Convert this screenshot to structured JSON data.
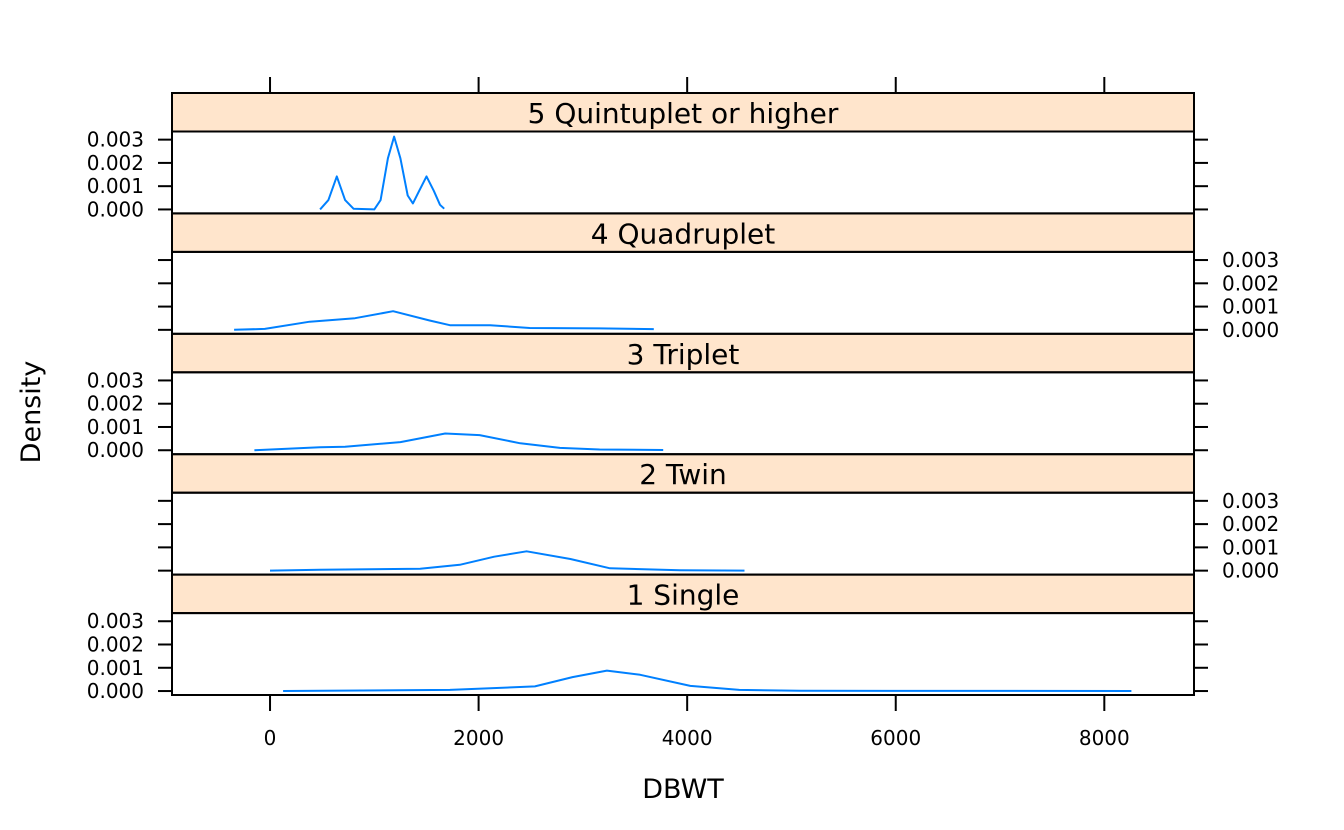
{
  "chart_data": {
    "type": "line",
    "plot_kind": "lattice density plot",
    "xlabel": "DBWT",
    "ylabel": "Density",
    "xlim": [
      -940,
      8860
    ],
    "ylim": [
      -0.00017,
      0.00335
    ],
    "x_ticks": [
      "0",
      "2000",
      "4000",
      "6000",
      "8000"
    ],
    "x_tick_values": [
      0,
      2000,
      4000,
      6000,
      8000
    ],
    "y_ticks": [
      "0.000",
      "0.001",
      "0.002",
      "0.003"
    ],
    "y_tick_values": [
      0,
      0.001,
      0.002,
      0.003
    ],
    "grid": false,
    "line_color": "#0080ff",
    "strip_color": "#ffe5cc",
    "panels": [
      {
        "strip": "1 Single",
        "y_labels_side": "left",
        "x": [
          125,
          1725,
          2540,
          2900,
          3230,
          3550,
          4030,
          4500,
          5080,
          8260
        ],
        "y": [
          0,
          5e-05,
          0.0002,
          0.0006,
          0.00088,
          0.0007,
          0.00022,
          5e-05,
          1e-05,
          0
        ]
      },
      {
        "strip": "2 Twin",
        "y_labels_side": "right",
        "x": [
          0,
          480,
          1440,
          1820,
          2150,
          2460,
          2880,
          3260,
          3930,
          4550
        ],
        "y": [
          0,
          4e-05,
          8e-05,
          0.00025,
          0.0006,
          0.00083,
          0.0005,
          0.0001,
          2e-05,
          0
        ]
      },
      {
        "strip": "3 Triplet",
        "y_labels_side": "left",
        "x": [
          -150,
          480,
          720,
          1250,
          1680,
          2010,
          2400,
          2780,
          3160,
          3770
        ],
        "y": [
          0,
          0.00013,
          0.00015,
          0.00035,
          0.00072,
          0.00065,
          0.0003,
          0.0001,
          3e-05,
          1e-05
        ]
      },
      {
        "strip": "4 Quadruplet",
        "y_labels_side": "right",
        "x": [
          -345,
          -50,
          380,
          815,
          1180,
          1530,
          1725,
          2110,
          2490,
          3160,
          3680
        ],
        "y": [
          0,
          4e-05,
          0.00035,
          0.0005,
          0.0008,
          0.0004,
          0.0002,
          0.0002,
          8e-05,
          6e-05,
          3e-05
        ]
      },
      {
        "strip": "5 Quintuplet or higher",
        "y_labels_side": "left",
        "x": [
          480,
          560,
          640,
          720,
          800,
          1000,
          1060,
          1130,
          1190,
          1250,
          1320,
          1370,
          1430,
          1500,
          1570,
          1630,
          1670
        ],
        "y": [
          0,
          0.0004,
          0.00142,
          0.0004,
          3e-05,
          0,
          0.0004,
          0.0022,
          0.00313,
          0.0022,
          0.0006,
          0.00026,
          0.0008,
          0.00142,
          0.0008,
          0.0002,
          3e-05
        ]
      }
    ]
  }
}
